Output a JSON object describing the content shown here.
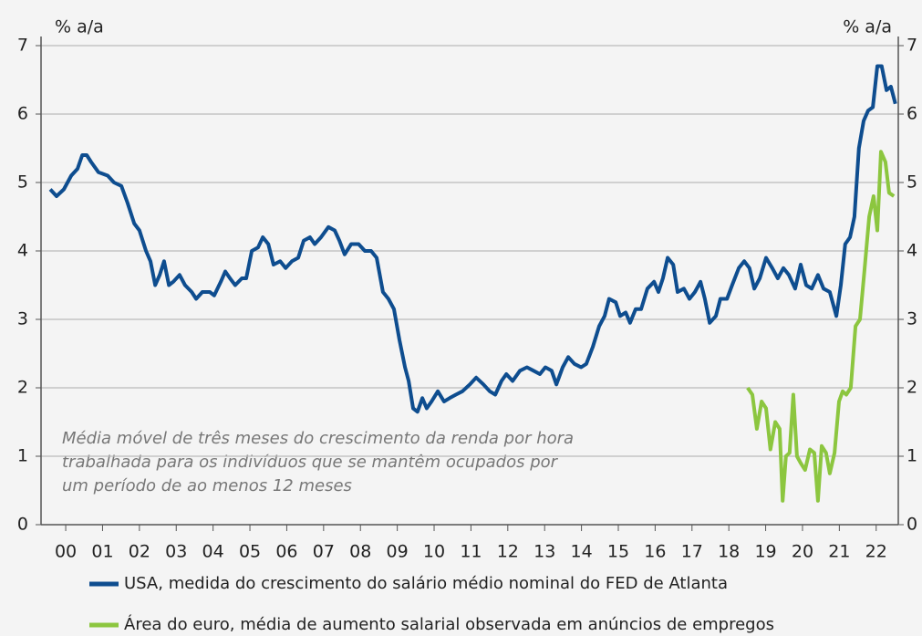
{
  "chart_data": {
    "type": "line",
    "y_unit_label": "% a/a",
    "y2_unit_label": "% a/a",
    "annotation": [
      "Média móvel de três meses do crescimento da renda por hora",
      "trabalhada para os indivíduos que se mantêm ocupados por",
      "um período de ao menos 12 meses"
    ],
    "xlim": [
      -0.67,
      22.6
    ],
    "xticks": [
      {
        "value": 0,
        "label": "00"
      },
      {
        "value": 1,
        "label": "01"
      },
      {
        "value": 2,
        "label": "02"
      },
      {
        "value": 3,
        "label": "03"
      },
      {
        "value": 4,
        "label": "04"
      },
      {
        "value": 5,
        "label": "05"
      },
      {
        "value": 6,
        "label": "06"
      },
      {
        "value": 7,
        "label": "07"
      },
      {
        "value": 8,
        "label": "08"
      },
      {
        "value": 9,
        "label": "09"
      },
      10,
      11,
      12,
      13,
      14,
      15,
      16,
      17,
      18,
      19,
      20,
      21,
      22
    ],
    "ylim": [
      0,
      7
    ],
    "yticks": [
      0,
      1,
      2,
      3,
      4,
      5,
      6,
      7
    ],
    "y2lim": [
      0,
      7
    ],
    "y2ticks": [
      0,
      1,
      2,
      3,
      4,
      5,
      6,
      7
    ],
    "grid": true,
    "series": [
      {
        "name": "USA, medida do crescimento do salário médio nominal do FED de Atlanta",
        "color": "#0e4d8f",
        "x": [
          -0.42,
          -0.25,
          -0.05,
          0.15,
          0.32,
          0.45,
          0.57,
          0.69,
          0.89,
          1.14,
          1.31,
          1.51,
          1.68,
          1.86,
          2.0,
          2.18,
          2.3,
          2.43,
          2.55,
          2.67,
          2.8,
          2.92,
          3.09,
          3.24,
          3.42,
          3.54,
          3.71,
          3.91,
          4.03,
          4.21,
          4.33,
          4.46,
          4.6,
          4.78,
          4.9,
          5.05,
          5.22,
          5.35,
          5.5,
          5.64,
          5.82,
          5.97,
          6.14,
          6.31,
          6.46,
          6.63,
          6.76,
          6.93,
          7.13,
          7.3,
          7.43,
          7.57,
          7.75,
          7.95,
          8.12,
          8.29,
          8.44,
          8.61,
          8.76,
          8.91,
          9.06,
          9.21,
          9.31,
          9.43,
          9.55,
          9.68,
          9.8,
          9.93,
          10.1,
          10.27,
          10.42,
          10.59,
          10.77,
          10.97,
          11.14,
          11.34,
          11.51,
          11.66,
          11.83,
          11.96,
          12.13,
          12.33,
          12.52,
          12.7,
          12.87,
          13.02,
          13.19,
          13.32,
          13.49,
          13.64,
          13.81,
          13.99,
          14.13,
          14.31,
          14.48,
          14.63,
          14.75,
          14.93,
          15.05,
          15.2,
          15.32,
          15.47,
          15.62,
          15.79,
          15.97,
          16.09,
          16.21,
          16.34,
          16.49,
          16.61,
          16.78,
          16.93,
          17.08,
          17.23,
          17.35,
          17.48,
          17.65,
          17.77,
          17.95,
          18.09,
          18.27,
          18.42,
          18.56,
          18.69,
          18.84,
          19.01,
          19.18,
          19.33,
          19.48,
          19.63,
          19.8,
          19.95,
          20.1,
          20.25,
          20.42,
          20.57,
          20.74,
          20.92,
          21.04,
          21.16,
          21.29,
          21.41,
          21.53,
          21.66,
          21.78,
          21.91,
          22.03,
          22.15,
          22.28,
          22.4,
          22.52
        ],
        "values": [
          4.9,
          4.8,
          4.9,
          5.1,
          5.2,
          5.4,
          5.4,
          5.3,
          5.15,
          5.1,
          5.0,
          4.95,
          4.7,
          4.4,
          4.3,
          4.0,
          3.85,
          3.5,
          3.65,
          3.85,
          3.5,
          3.55,
          3.65,
          3.5,
          3.4,
          3.3,
          3.4,
          3.4,
          3.35,
          3.55,
          3.7,
          3.6,
          3.5,
          3.6,
          3.6,
          4.0,
          4.05,
          4.2,
          4.1,
          3.8,
          3.85,
          3.75,
          3.85,
          3.9,
          4.15,
          4.2,
          4.1,
          4.2,
          4.35,
          4.3,
          4.15,
          3.95,
          4.1,
          4.1,
          4.0,
          4.0,
          3.9,
          3.4,
          3.3,
          3.15,
          2.7,
          2.3,
          2.1,
          1.7,
          1.65,
          1.85,
          1.7,
          1.8,
          1.95,
          1.8,
          1.85,
          1.9,
          1.95,
          2.05,
          2.15,
          2.05,
          1.95,
          1.9,
          2.1,
          2.2,
          2.1,
          2.25,
          2.3,
          2.25,
          2.2,
          2.3,
          2.25,
          2.05,
          2.3,
          2.45,
          2.35,
          2.3,
          2.35,
          2.6,
          2.9,
          3.05,
          3.3,
          3.25,
          3.05,
          3.1,
          2.95,
          3.15,
          3.15,
          3.45,
          3.55,
          3.4,
          3.6,
          3.9,
          3.8,
          3.4,
          3.45,
          3.3,
          3.4,
          3.55,
          3.3,
          2.95,
          3.05,
          3.3,
          3.3,
          3.5,
          3.75,
          3.85,
          3.75,
          3.45,
          3.6,
          3.9,
          3.75,
          3.6,
          3.75,
          3.65,
          3.45,
          3.8,
          3.5,
          3.45,
          3.65,
          3.45,
          3.4,
          3.05,
          3.5,
          4.1,
          4.2,
          4.5,
          5.5,
          5.9,
          6.05,
          6.1,
          6.7,
          6.7,
          6.35,
          6.4,
          6.15
        ]
      },
      {
        "name": "Área do euro, média de aumento salarial observada em anúncios de empregos",
        "color": "#8cc63f",
        "axis": "y2",
        "x": [
          18.51,
          18.64,
          18.76,
          18.89,
          19.01,
          19.13,
          19.26,
          19.38,
          19.46,
          19.55,
          19.65,
          19.75,
          19.85,
          19.95,
          20.07,
          20.2,
          20.32,
          20.42,
          20.52,
          20.64,
          20.74,
          20.87,
          20.99,
          21.09,
          21.19,
          21.31,
          21.44,
          21.56,
          21.68,
          21.81,
          21.93,
          22.03,
          22.13,
          22.25,
          22.35,
          22.48
        ],
        "values": [
          2.0,
          1.9,
          1.4,
          1.8,
          1.7,
          1.1,
          1.5,
          1.4,
          0.35,
          1.0,
          1.05,
          1.9,
          1.0,
          0.9,
          0.8,
          1.1,
          1.05,
          0.35,
          1.15,
          1.05,
          0.75,
          1.05,
          1.8,
          1.95,
          1.9,
          2.0,
          2.9,
          3.0,
          3.7,
          4.5,
          4.8,
          4.3,
          5.45,
          5.3,
          4.85,
          4.8
        ]
      }
    ]
  }
}
